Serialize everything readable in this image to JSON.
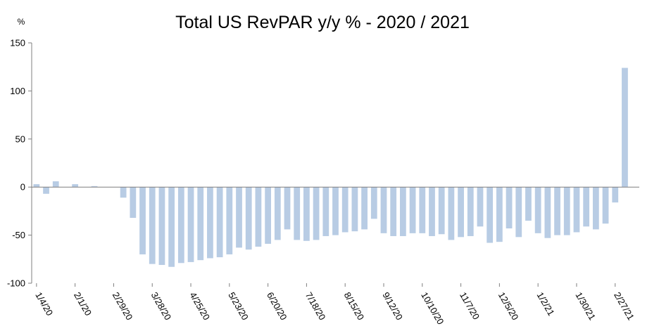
{
  "chart_data": {
    "type": "bar",
    "title": "Total US RevPAR y/y % - 2020 / 2021",
    "ylabel": "%",
    "xlabel": "",
    "ylim": [
      -100,
      150
    ],
    "yticks": [
      150,
      100,
      50,
      0,
      -50,
      -100
    ],
    "x_tick_labels": [
      "1/4/20",
      "2/1/20",
      "2/29/20",
      "3/28/20",
      "4/25/20",
      "5/23/20",
      "6/20/20",
      "7/18/20",
      "8/15/20",
      "9/12/20",
      "10/10/20",
      "11/7/20",
      "12/5/20",
      "1/2/21",
      "1/30/21",
      "2/27/21"
    ],
    "grid": false,
    "legend": "none",
    "bar_color": "#b8cce4",
    "categories": [
      "1/4/20",
      "1/11/20",
      "1/18/20",
      "1/25/20",
      "2/1/20",
      "2/8/20",
      "2/15/20",
      "2/22/20",
      "2/29/20",
      "3/7/20",
      "3/14/20",
      "3/21/20",
      "3/28/20",
      "4/4/20",
      "4/11/20",
      "4/18/20",
      "4/25/20",
      "5/2/20",
      "5/9/20",
      "5/16/20",
      "5/23/20",
      "5/30/20",
      "6/6/20",
      "6/13/20",
      "6/20/20",
      "6/27/20",
      "7/4/20",
      "7/11/20",
      "7/18/20",
      "7/25/20",
      "8/1/20",
      "8/8/20",
      "8/15/20",
      "8/22/20",
      "8/29/20",
      "9/5/20",
      "9/12/20",
      "9/19/20",
      "9/26/20",
      "10/3/20",
      "10/10/20",
      "10/17/20",
      "10/24/20",
      "10/31/20",
      "11/7/20",
      "11/14/20",
      "11/21/20",
      "11/28/20",
      "12/5/20",
      "12/12/20",
      "12/19/20",
      "12/26/20",
      "1/2/21",
      "1/9/21",
      "1/16/21",
      "1/23/21",
      "1/30/21",
      "2/6/21",
      "2/13/21",
      "2/20/21",
      "2/27/21",
      "3/6/21",
      "3/13/21"
    ],
    "values": [
      3,
      -7,
      6,
      0,
      3,
      0,
      1,
      0,
      0,
      -11,
      -32,
      -70,
      -80,
      -81,
      -83,
      -79,
      -78,
      -76,
      -74,
      -73,
      -70,
      -63,
      -65,
      -62,
      -59,
      -55,
      -44,
      -55,
      -56,
      -55,
      -51,
      -50,
      -47,
      -46,
      -44,
      -33,
      -48,
      -51,
      -51,
      -48,
      -48,
      -51,
      -49,
      -55,
      -52,
      -51,
      -41,
      -58,
      -57,
      -43,
      -52,
      -35,
      -48,
      -53,
      -50,
      -50,
      -47,
      -41,
      -44,
      -38,
      -16,
      124,
      0
    ]
  }
}
